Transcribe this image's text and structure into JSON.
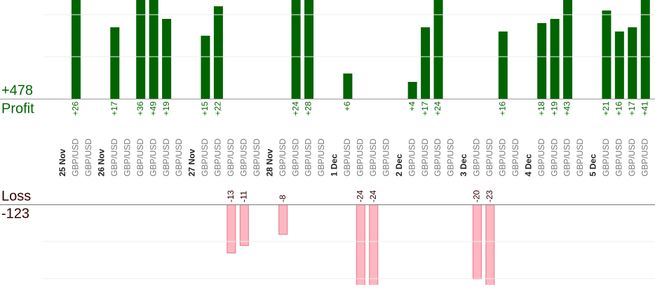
{
  "chart_data": {
    "type": "bar",
    "profit_label": "Profit",
    "profit_total": "+478",
    "loss_label": "Loss",
    "loss_total": "-123",
    "categories": [
      "25 Nov",
      "GBP/USD",
      "GBP/USD",
      "26 Nov",
      "GBP/USD",
      "GBP/USD",
      "GBP/USD",
      "GBP/USD",
      "GBP/USD",
      "GBP/USD",
      "27 Nov",
      "GBP/USD",
      "GBP/USD",
      "GBP/USD",
      "GBP/USD",
      "GBP/USD",
      "28 Nov",
      "GBP/USD",
      "GBP/USD",
      "GBP/USD",
      "GBP/USD",
      "1 Dec",
      "GBP/USD",
      "GBP/USD",
      "GBP/USD",
      "GBP/USD",
      "2 Dec",
      "GBP/USD",
      "GBP/USD",
      "GBP/USD",
      "GBP/USD",
      "3 Dec",
      "GBP/USD",
      "GBP/USD",
      "GBP/USD",
      "GBP/USD",
      "4 Dec",
      "GBP/USD",
      "GBP/USD",
      "GBP/USD",
      "GBP/USD",
      "5 Dec",
      "GBP/USD",
      "GBP/USD",
      "GBP/USD",
      "GBP/USD"
    ],
    "series": [
      {
        "name": "Profit",
        "color": "#006400",
        "values": [
          null,
          26,
          null,
          null,
          17,
          null,
          36,
          49,
          19,
          null,
          null,
          15,
          22,
          null,
          null,
          null,
          null,
          null,
          24,
          28,
          null,
          null,
          6,
          null,
          null,
          null,
          null,
          4,
          17,
          24,
          null,
          null,
          null,
          null,
          16,
          null,
          null,
          18,
          19,
          43,
          null,
          null,
          21,
          16,
          17,
          41
        ],
        "value_labels": [
          null,
          "+26",
          null,
          null,
          "+17",
          null,
          "+36",
          "+49",
          "+19",
          null,
          null,
          "+15",
          "+22",
          null,
          null,
          null,
          null,
          null,
          "+24",
          "+28",
          null,
          null,
          "+6",
          null,
          null,
          null,
          null,
          "+4",
          "+17",
          "+24",
          null,
          null,
          null,
          null,
          "+16",
          null,
          null,
          "+18",
          "+19",
          "+43",
          null,
          null,
          "+21",
          "+16",
          "+17",
          "+41"
        ]
      },
      {
        "name": "Loss",
        "color": "#ffb6c1",
        "axis": "y2",
        "values": [
          null,
          null,
          null,
          null,
          null,
          null,
          null,
          null,
          null,
          null,
          null,
          null,
          null,
          -13,
          -11,
          null,
          null,
          -8,
          null,
          null,
          null,
          null,
          null,
          -24,
          -24,
          null,
          null,
          null,
          null,
          null,
          null,
          null,
          -20,
          -23,
          null,
          null,
          null,
          null,
          null,
          null,
          null,
          null,
          null,
          null,
          null,
          null
        ],
        "value_labels": [
          null,
          null,
          null,
          null,
          null,
          null,
          null,
          null,
          null,
          null,
          null,
          null,
          null,
          "-13",
          "-11",
          null,
          null,
          "-8",
          null,
          null,
          null,
          null,
          null,
          "-24",
          "-24",
          null,
          null,
          null,
          null,
          null,
          null,
          null,
          "-20",
          "-23",
          null,
          null,
          null,
          null,
          null,
          null,
          null,
          null,
          null,
          null,
          null,
          null
        ]
      }
    ],
    "ylim": [
      0,
      23.5
    ],
    "yticks": [
      10,
      20
    ],
    "y2lim": [
      -21.7,
      0
    ],
    "y2ticks": [
      -10,
      -20
    ],
    "grid": true
  }
}
